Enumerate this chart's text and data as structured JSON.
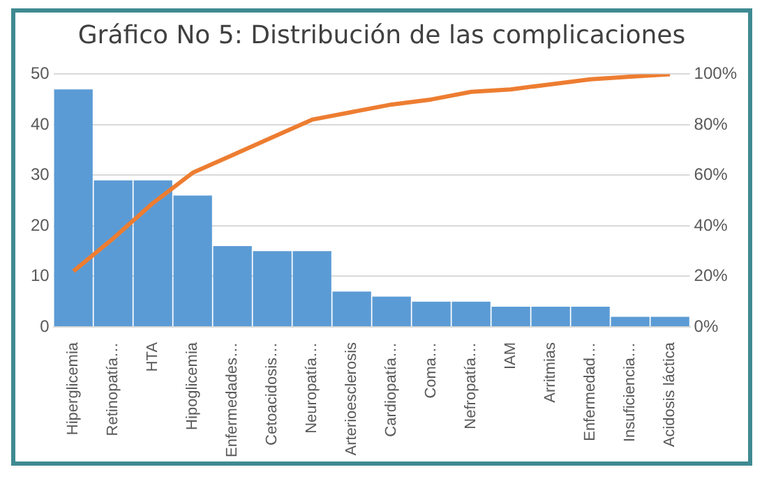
{
  "chart_data": {
    "type": "bar",
    "title": "Gráfico No 5: Distribución de las complicaciones",
    "categories": [
      "Hiperglicemia",
      "Retinopatía…",
      "HTA",
      "Hipoglicemia",
      "Enfermedades…",
      "Cetoacidosis…",
      "Neuropatía…",
      "Arterioesclerosis",
      "Cardiopatía…",
      "Coma…",
      "Nefropatía…",
      "IAM",
      "Arritmias",
      "Enfermedad…",
      "Insuficiencia…",
      "Acidosis láctica"
    ],
    "series": [
      {
        "color": "#5b9bd5",
        "values": [
          47,
          29,
          29,
          26,
          16,
          15,
          15,
          7,
          6,
          5,
          5,
          4,
          4,
          4,
          2,
          2
        ]
      },
      {
        "type": "line",
        "axis": "y2",
        "color": "#ed7d31",
        "values": [
          22,
          35,
          49,
          61,
          68,
          75,
          82,
          85,
          88,
          90,
          93,
          94,
          96,
          98,
          99,
          100
        ]
      }
    ],
    "ylim": [
      0,
      50
    ],
    "yticks": [
      0,
      10,
      20,
      30,
      40,
      50
    ],
    "y2lim": [
      0,
      100
    ],
    "y2ticks": [
      {
        "value": 0,
        "label": "0%"
      },
      {
        "value": 20,
        "label": "20%"
      },
      {
        "value": 40,
        "label": "40%"
      },
      {
        "value": 60,
        "label": "60%"
      },
      {
        "value": 80,
        "label": "80%"
      },
      {
        "value": 100,
        "label": "100%"
      }
    ],
    "grid": "y",
    "legend": false,
    "marker": "none"
  }
}
